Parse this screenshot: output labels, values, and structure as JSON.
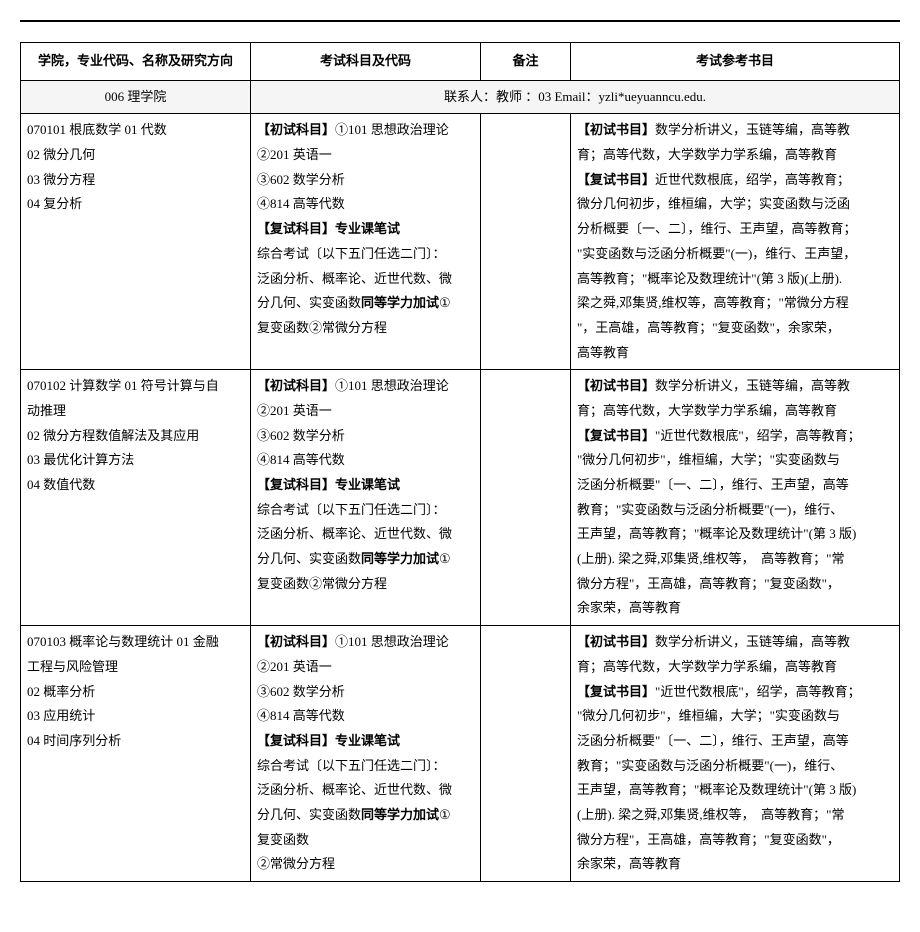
{
  "headers": {
    "col1": "学院，专业代码、名称及研究方向",
    "col2": "考试科目及代码",
    "col3": "备注",
    "col4": "考试参考书目"
  },
  "dept_row": {
    "dept": "006  理学院",
    "contact": "联系人：教师  ：03   Email：yzli*ueyuanncu.edu."
  },
  "rows": [
    {
      "major_lines": [
        "070101 根底数学 01 代数",
        "02 微分几何",
        "03 微分方程",
        "04 复分析"
      ],
      "exam_lines": [
        "【初试科目】①101 思想政治理论",
        "②201 英语一",
        "③602 数学分析",
        "④814 高等代数",
        "【复试科目】专业课笔试",
        "综合考试〔以下五门任选二门〕：",
        "泛函分析、概率论、近世代数、微",
        "分几何、实变函数同等学力加试①",
        "复变函数②常微分方程"
      ],
      "note": "",
      "ref_lines": [
        "【初试书目】数学分析讲义，玉链等编，高等教",
        "育；高等代数，大学数学力学系编，高等教育",
        "【复试书目】近世代数根底，绍学，高等教育；",
        "微分几何初步，维桓编，大学；实变函数与泛函",
        "分析概要〔一、二〕，维行、王声望，高等教育；",
        "\"实变函数与泛函分析概要\"(一)，维行、王声望，",
        "高等教育；\"概率论及数理统计\"(第 3 版)(上册).",
        "梁之舜,邓集贤,维权等，高等教育；\"常微分方程",
        "\"，王高雄，高等教育；\"复变函数\"，余家荣，",
        "高等教育"
      ]
    },
    {
      "major_lines": [
        "070102 计算数学 01 符号计算与自",
        "动推理",
        "02 微分方程数值解法及其应用",
        "03 最优化计算方法",
        "04 数值代数"
      ],
      "exam_lines": [
        "【初试科目】①101 思想政治理论",
        "②201 英语一",
        "③602 数学分析",
        "④814 高等代数",
        "【复试科目】专业课笔试",
        "综合考试〔以下五门任选二门〕：",
        "泛函分析、概率论、近世代数、微",
        "分几何、实变函数同等学力加试①",
        "复变函数②常微分方程"
      ],
      "note": "",
      "ref_lines": [
        "【初试书目】数学分析讲义，玉链等编，高等教",
        "育；高等代数，大学数学力学系编，高等教育",
        "【复试书目】\"近世代数根底\"，绍学，高等教育；",
        "\"微分几何初步\"，维桓编，大学；\"实变函数与",
        "泛函分析概要\"〔一、二〕，维行、王声望，高等",
        "教育；\"实变函数与泛函分析概要\"(一)，维行、",
        "王声望，高等教育；\"概率论及数理统计\"(第 3 版)",
        "(上册). 梁之舜,邓集贤,维权等，　高等教育；\"常",
        "微分方程\"，王高雄，高等教育；\"复变函数\"，",
        "余家荣，高等教育"
      ]
    },
    {
      "major_lines": [
        "070103 概率论与数理统计 01 金融",
        "工程与风险管理",
        "02 概率分析",
        "03 应用统计",
        "04 时间序列分析"
      ],
      "exam_lines": [
        "【初试科目】①101 思想政治理论",
        "②201 英语一",
        "③602 数学分析",
        "④814 高等代数",
        "【复试科目】专业课笔试",
        "综合考试〔以下五门任选二门〕：",
        "泛函分析、概率论、近世代数、微",
        "分几何、实变函数同等学力加试①",
        "复变函数",
        "②常微分方程"
      ],
      "note": "",
      "ref_lines": [
        "【初试书目】数学分析讲义，玉链等编，高等教",
        "育；高等代数，大学数学力学系编，高等教育",
        "【复试书目】\"近世代数根底\"，绍学，高等教育；",
        "\"微分几何初步\"，维桓编，大学；\"实变函数与",
        "泛函分析概要\"〔一、二〕，维行、王声望，高等",
        "教育；\"实变函数与泛函分析概要\"(一)，维行、",
        "王声望，高等教育；\"概率论及数理统计\"(第 3 版)",
        "(上册). 梁之舜,邓集贤,维权等，　高等教育；\"常",
        "微分方程\"，王高雄，高等教育；\"复变函数\"，",
        "余家荣，高等教育"
      ]
    }
  ]
}
